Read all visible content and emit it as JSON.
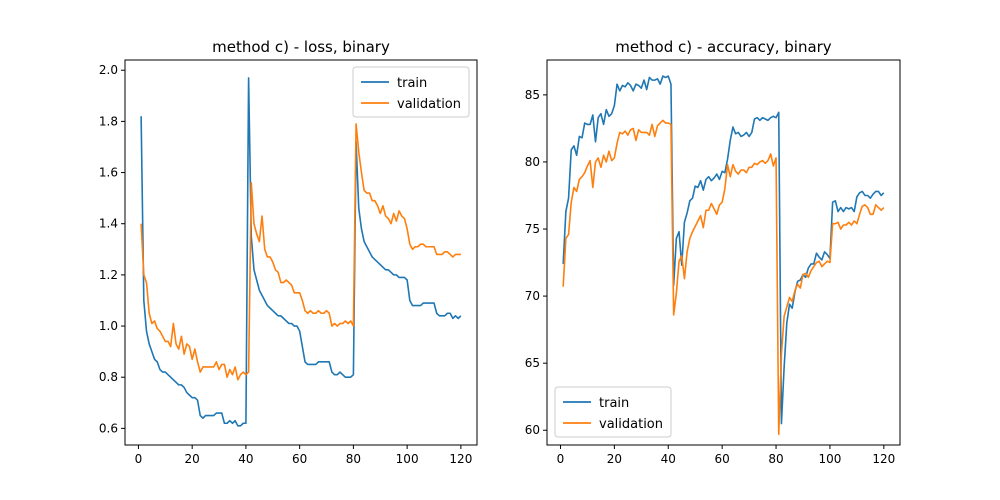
{
  "colors": {
    "train": "#1f77b4",
    "validation": "#ff7f0e"
  },
  "chart_data": [
    {
      "type": "line",
      "title": "method c) - loss, binary",
      "xlabel": "",
      "ylabel": "",
      "xlim": [
        -5,
        126
      ],
      "ylim": [
        0.535,
        2.04
      ],
      "xticks": [
        0,
        20,
        40,
        60,
        80,
        100,
        120
      ],
      "yticks": [
        0.6,
        0.8,
        1.0,
        1.2,
        1.4,
        1.6,
        1.8,
        2.0
      ],
      "xtick_labels": [
        "0",
        "20",
        "40",
        "60",
        "80",
        "100",
        "120"
      ],
      "ytick_labels": [
        "0.6",
        "0.8",
        "1.0",
        "1.2",
        "1.4",
        "1.6",
        "1.8",
        "2.0"
      ],
      "legend": "top-right",
      "grid": false,
      "x_start": 1,
      "series": [
        {
          "name": "train",
          "values": [
            1.82,
            1.1,
            0.98,
            0.93,
            0.9,
            0.87,
            0.86,
            0.83,
            0.82,
            0.82,
            0.81,
            0.8,
            0.79,
            0.78,
            0.77,
            0.77,
            0.76,
            0.74,
            0.73,
            0.72,
            0.72,
            0.71,
            0.65,
            0.64,
            0.65,
            0.65,
            0.65,
            0.65,
            0.66,
            0.66,
            0.66,
            0.62,
            0.62,
            0.63,
            0.62,
            0.63,
            0.61,
            0.61,
            0.62,
            0.62,
            1.97,
            1.35,
            1.22,
            1.18,
            1.14,
            1.12,
            1.1,
            1.08,
            1.07,
            1.06,
            1.05,
            1.04,
            1.04,
            1.03,
            1.02,
            1.01,
            1.01,
            1.0,
            1.0,
            0.98,
            0.92,
            0.86,
            0.85,
            0.85,
            0.85,
            0.85,
            0.86,
            0.86,
            0.86,
            0.86,
            0.86,
            0.82,
            0.81,
            0.81,
            0.82,
            0.81,
            0.8,
            0.8,
            0.8,
            0.81,
            1.72,
            1.46,
            1.38,
            1.33,
            1.31,
            1.29,
            1.27,
            1.26,
            1.25,
            1.24,
            1.23,
            1.22,
            1.22,
            1.21,
            1.2,
            1.2,
            1.19,
            1.19,
            1.19,
            1.18,
            1.1,
            1.08,
            1.08,
            1.08,
            1.08,
            1.09,
            1.09,
            1.09,
            1.09,
            1.09,
            1.05,
            1.04,
            1.04,
            1.04,
            1.05,
            1.05,
            1.03,
            1.04,
            1.03,
            1.04
          ]
        },
        {
          "name": "validation",
          "values": [
            1.4,
            1.2,
            1.17,
            1.05,
            1.01,
            1.02,
            0.99,
            0.98,
            0.96,
            0.94,
            0.94,
            0.92,
            1.01,
            0.93,
            0.91,
            0.96,
            0.89,
            0.93,
            0.92,
            0.87,
            0.91,
            0.86,
            0.82,
            0.84,
            0.84,
            0.84,
            0.84,
            0.84,
            0.86,
            0.83,
            0.85,
            0.85,
            0.8,
            0.83,
            0.81,
            0.84,
            0.79,
            0.81,
            0.82,
            0.81,
            0.82,
            1.56,
            1.4,
            1.36,
            1.33,
            1.43,
            1.3,
            1.27,
            1.27,
            1.25,
            1.22,
            1.21,
            1.17,
            1.17,
            1.18,
            1.17,
            1.16,
            1.13,
            1.13,
            1.13,
            1.1,
            1.06,
            1.05,
            1.06,
            1.05,
            1.05,
            1.06,
            1.05,
            1.05,
            1.06,
            1.05,
            1.0,
            1.01,
            1.0,
            1.01,
            1.01,
            1.02,
            1.01,
            1.02,
            1.0,
            1.79,
            1.68,
            1.6,
            1.53,
            1.52,
            1.52,
            1.49,
            1.49,
            1.47,
            1.44,
            1.47,
            1.43,
            1.42,
            1.4,
            1.44,
            1.41,
            1.45,
            1.43,
            1.42,
            1.38,
            1.32,
            1.3,
            1.31,
            1.31,
            1.32,
            1.32,
            1.31,
            1.31,
            1.31,
            1.31,
            1.28,
            1.28,
            1.28,
            1.29,
            1.29,
            1.28,
            1.27,
            1.28,
            1.28,
            1.28
          ]
        }
      ]
    },
    {
      "type": "line",
      "title": "method c) - accuracy, binary",
      "xlabel": "",
      "ylabel": "",
      "xlim": [
        -5,
        126
      ],
      "ylim": [
        58.9,
        87.6
      ],
      "xticks": [
        0,
        20,
        40,
        60,
        80,
        100,
        120
      ],
      "yticks": [
        60,
        65,
        70,
        75,
        80,
        85
      ],
      "xtick_labels": [
        "0",
        "20",
        "40",
        "60",
        "80",
        "100",
        "120"
      ],
      "ytick_labels": [
        "60",
        "65",
        "70",
        "75",
        "80",
        "85"
      ],
      "legend": "bottom-left",
      "grid": false,
      "x_start": 1,
      "series": [
        {
          "name": "train",
          "values": [
            72.4,
            76.3,
            77.3,
            80.9,
            81.2,
            80.5,
            81.9,
            81.8,
            82.9,
            82.8,
            82.8,
            83.5,
            81.5,
            83.3,
            83.6,
            82.8,
            83.9,
            83.4,
            83.6,
            84.2,
            85.8,
            85.3,
            85.7,
            85.6,
            85.9,
            85.7,
            85.3,
            85.8,
            85.7,
            85.5,
            86.1,
            85.4,
            86.3,
            86.1,
            86.1,
            86.2,
            85.8,
            86.4,
            86.3,
            86.4,
            85.8,
            70.8,
            74.3,
            74.8,
            72.3,
            75.5,
            76.2,
            77.1,
            77.3,
            78.2,
            78.1,
            78.6,
            77.9,
            78.7,
            78.9,
            78.6,
            78.8,
            79.1,
            78.7,
            79.3,
            79.2,
            80.2,
            81.6,
            82.6,
            82.1,
            82.2,
            81.9,
            82.0,
            82.2,
            81.9,
            82.2,
            83.2,
            83.3,
            83.1,
            83.3,
            83.2,
            83.1,
            83.3,
            83.4,
            83.3,
            83.7,
            60.5,
            64.7,
            68.0,
            69.4,
            69.1,
            70.3,
            71.1,
            71.2,
            71.6,
            71.4,
            72.1,
            72.4,
            72.4,
            73.2,
            72.9,
            72.7,
            73.3,
            73.1,
            72.8,
            77.0,
            77.1,
            76.3,
            76.6,
            76.3,
            76.6,
            76.5,
            76.6,
            76.3,
            77.4,
            77.7,
            77.8,
            77.5,
            77.5,
            77.3,
            77.6,
            77.8,
            77.8,
            77.5,
            77.7
          ]
        },
        {
          "name": "validation",
          "values": [
            70.7,
            74.3,
            74.6,
            77.0,
            78.1,
            77.8,
            78.7,
            78.9,
            79.2,
            79.7,
            80.1,
            78.1,
            80.0,
            80.3,
            79.6,
            80.5,
            80.0,
            80.8,
            80.1,
            80.3,
            81.4,
            82.2,
            82.1,
            82.3,
            82.0,
            82.4,
            82.5,
            81.6,
            82.4,
            82.2,
            82.2,
            82.2,
            82.0,
            82.8,
            81.9,
            82.7,
            82.9,
            83.1,
            82.9,
            82.9,
            82.8,
            68.6,
            70.2,
            72.6,
            73.0,
            71.3,
            73.3,
            74.3,
            74.8,
            75.2,
            75.6,
            76.0,
            75.1,
            76.4,
            76.4,
            76.9,
            76.5,
            76.1,
            76.8,
            77.0,
            78.0,
            79.8,
            78.9,
            79.8,
            79.3,
            79.1,
            79.4,
            79.4,
            79.2,
            79.6,
            79.6,
            79.9,
            79.8,
            80.0,
            80.1,
            79.9,
            80.1,
            80.6,
            79.7,
            80.3,
            59.7,
            65.7,
            68.5,
            69.2,
            69.9,
            69.6,
            70.4,
            70.9,
            70.6,
            71.6,
            71.7,
            71.4,
            71.9,
            72.2,
            72.5,
            72.6,
            72.2,
            72.4,
            72.6,
            72.5,
            75.4,
            75.4,
            75.5,
            75.0,
            75.3,
            75.3,
            75.5,
            75.3,
            75.6,
            75.4,
            76.1,
            76.7,
            76.8,
            76.6,
            76.1,
            76.1,
            76.8,
            76.6,
            76.4,
            76.6
          ]
        }
      ]
    }
  ]
}
